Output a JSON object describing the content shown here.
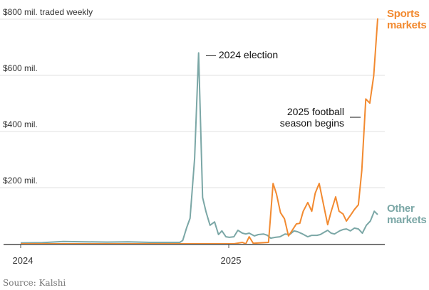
{
  "chart_data": {
    "type": "line",
    "title": "",
    "ylabel": "$800 mil. traded weekly",
    "ylim": [
      0,
      800
    ],
    "y_ticks": [
      {
        "value": 200,
        "label": "$200 mil."
      },
      {
        "value": 400,
        "label": "$400 mil."
      },
      {
        "value": 600,
        "label": "$600 mil."
      },
      {
        "value": 800,
        "label": "$800 mil. traded weekly"
      }
    ],
    "x_ticks": [
      {
        "date": "2024-01-01",
        "label": "2024"
      },
      {
        "date": "2025-01-01",
        "label": "2025"
      }
    ],
    "grid": true,
    "series": [
      {
        "name": "Other markets",
        "label_lines": [
          "Other",
          "markets"
        ],
        "color": "#7ba7a6",
        "points": [
          [
            "2024-01-01",
            3
          ],
          [
            "2024-02-08",
            4
          ],
          [
            "2024-03-16",
            8
          ],
          [
            "2024-04-23",
            7
          ],
          [
            "2024-06-01",
            6
          ],
          [
            "2024-07-08",
            7
          ],
          [
            "2024-08-15",
            5
          ],
          [
            "2024-09-21",
            5
          ],
          [
            "2024-10-07",
            5
          ],
          [
            "2024-10-12",
            12
          ],
          [
            "2024-10-19",
            58
          ],
          [
            "2024-10-25",
            91
          ],
          [
            "2024-11-02",
            304
          ],
          [
            "2024-11-09",
            680
          ],
          [
            "2024-11-16",
            165
          ],
          [
            "2024-11-22",
            114
          ],
          [
            "2024-11-29",
            66
          ],
          [
            "2024-12-07",
            78
          ],
          [
            "2024-12-14",
            33
          ],
          [
            "2024-12-20",
            46
          ],
          [
            "2024-12-27",
            25
          ],
          [
            "2025-01-02",
            23
          ],
          [
            "2025-01-10",
            25
          ],
          [
            "2025-01-17",
            48
          ],
          [
            "2025-01-25",
            38
          ],
          [
            "2025-01-31",
            35
          ],
          [
            "2025-02-06",
            38
          ],
          [
            "2025-02-15",
            28
          ],
          [
            "2025-02-22",
            33
          ],
          [
            "2025-03-03",
            35
          ],
          [
            "2025-03-10",
            30
          ],
          [
            "2025-03-16",
            20
          ],
          [
            "2025-03-24",
            23
          ],
          [
            "2025-04-01",
            25
          ],
          [
            "2025-04-10",
            35
          ],
          [
            "2025-04-18",
            33
          ],
          [
            "2025-04-26",
            46
          ],
          [
            "2025-05-02",
            43
          ],
          [
            "2025-05-11",
            35
          ],
          [
            "2025-05-20",
            25
          ],
          [
            "2025-05-27",
            30
          ],
          [
            "2025-06-05",
            30
          ],
          [
            "2025-06-11",
            33
          ],
          [
            "2025-06-18",
            41
          ],
          [
            "2025-06-24",
            48
          ],
          [
            "2025-06-30",
            38
          ],
          [
            "2025-07-06",
            35
          ],
          [
            "2025-07-15",
            46
          ],
          [
            "2025-07-21",
            51
          ],
          [
            "2025-07-27",
            53
          ],
          [
            "2025-08-03",
            46
          ],
          [
            "2025-08-10",
            56
          ],
          [
            "2025-08-17",
            53
          ],
          [
            "2025-08-24",
            38
          ],
          [
            "2025-08-31",
            66
          ],
          [
            "2025-09-07",
            81
          ],
          [
            "2025-09-14",
            116
          ],
          [
            "2025-09-20",
            104
          ]
        ]
      },
      {
        "name": "Sports markets",
        "label_lines": [
          "Sports",
          "markets"
        ],
        "color": "#f28a30",
        "points": [
          [
            "2024-01-01",
            0
          ],
          [
            "2025-01-10",
            0
          ],
          [
            "2025-01-19",
            3
          ],
          [
            "2025-01-25",
            5
          ],
          [
            "2025-01-31",
            0
          ],
          [
            "2025-02-06",
            25
          ],
          [
            "2025-02-13",
            2
          ],
          [
            "2025-03-12",
            5
          ],
          [
            "2025-03-20",
            215
          ],
          [
            "2025-03-26",
            177
          ],
          [
            "2025-04-02",
            111
          ],
          [
            "2025-04-09",
            89
          ],
          [
            "2025-04-16",
            28
          ],
          [
            "2025-04-22",
            46
          ],
          [
            "2025-04-30",
            71
          ],
          [
            "2025-05-06",
            73
          ],
          [
            "2025-05-12",
            116
          ],
          [
            "2025-05-20",
            147
          ],
          [
            "2025-05-27",
            116
          ],
          [
            "2025-06-02",
            180
          ],
          [
            "2025-06-09",
            215
          ],
          [
            "2025-06-16",
            147
          ],
          [
            "2025-06-24",
            68
          ],
          [
            "2025-06-30",
            114
          ],
          [
            "2025-07-08",
            167
          ],
          [
            "2025-07-14",
            116
          ],
          [
            "2025-07-21",
            106
          ],
          [
            "2025-07-27",
            81
          ],
          [
            "2025-08-04",
            104
          ],
          [
            "2025-08-10",
            122
          ],
          [
            "2025-08-17",
            139
          ],
          [
            "2025-08-23",
            261
          ],
          [
            "2025-08-30",
            516
          ],
          [
            "2025-09-06",
            501
          ],
          [
            "2025-09-13",
            598
          ],
          [
            "2025-09-20",
            803
          ]
        ]
      }
    ],
    "annotations": [
      {
        "text": "2024 election",
        "series": "Other markets"
      },
      {
        "text_lines": [
          "2025 football",
          "season begins"
        ],
        "series": "Sports markets"
      }
    ],
    "source": "Source: Kalshi"
  }
}
